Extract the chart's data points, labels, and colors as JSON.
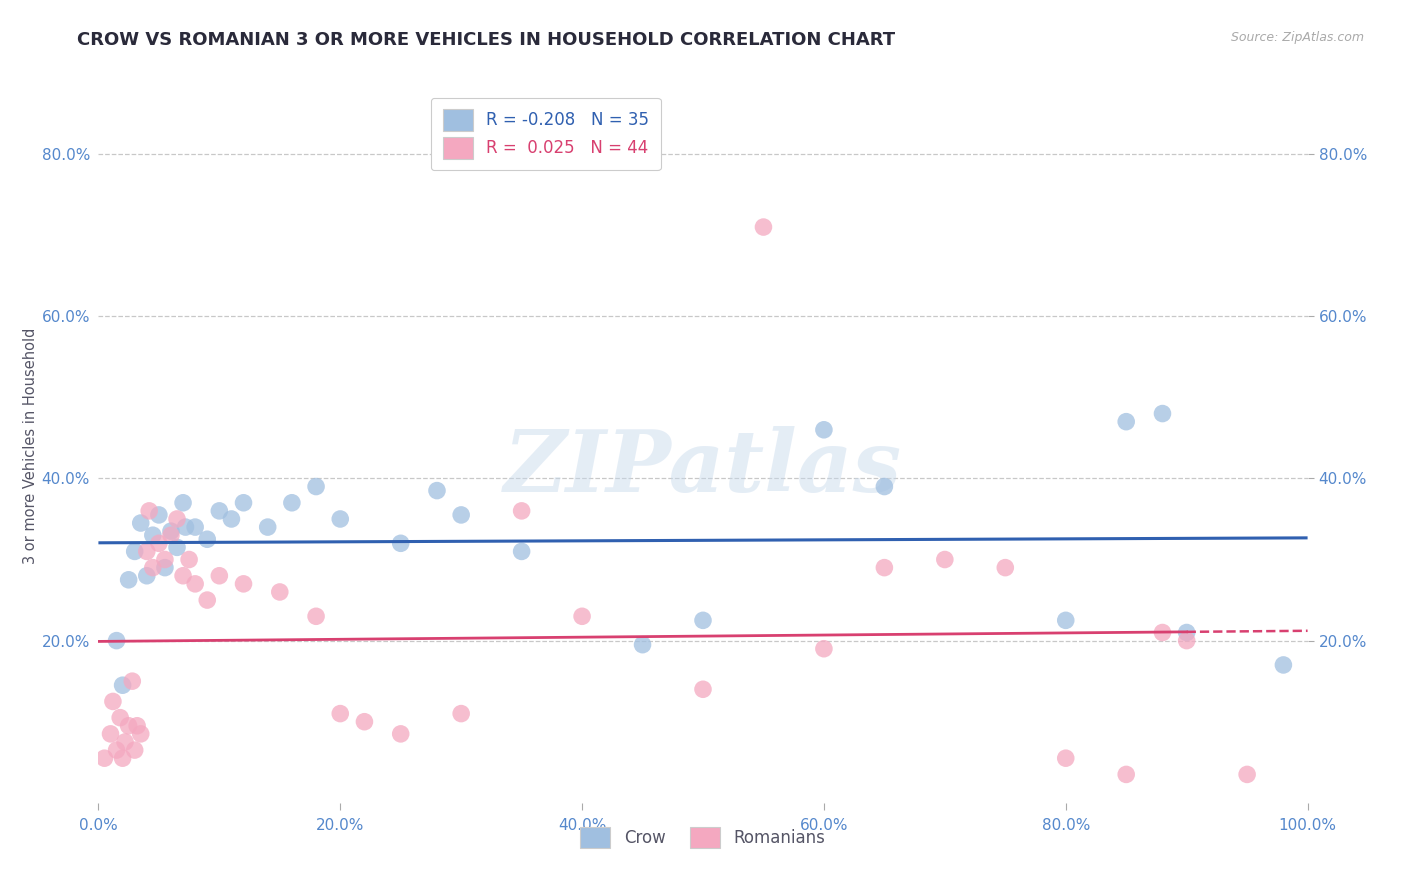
{
  "title": "CROW VS ROMANIAN 3 OR MORE VEHICLES IN HOUSEHOLD CORRELATION CHART",
  "source": "Source: ZipAtlas.com",
  "ylabel": "3 or more Vehicles in Household",
  "xlabel_vals": [
    0.0,
    20.0,
    40.0,
    60.0,
    80.0,
    100.0
  ],
  "ylabel_vals": [
    20.0,
    40.0,
    60.0,
    80.0
  ],
  "xlim": [
    0.0,
    100.0
  ],
  "ylim": [
    0.0,
    88.0
  ],
  "watermark_text": "ZIPatlas",
  "crow_scatter": [
    [
      1.5,
      20.0
    ],
    [
      2.0,
      14.5
    ],
    [
      3.0,
      31.0
    ],
    [
      4.0,
      28.0
    ],
    [
      4.5,
      33.0
    ],
    [
      5.0,
      35.5
    ],
    [
      5.5,
      29.0
    ],
    [
      6.0,
      33.5
    ],
    [
      6.5,
      31.5
    ],
    [
      7.0,
      37.0
    ],
    [
      7.2,
      34.0
    ],
    [
      8.0,
      34.0
    ],
    [
      9.0,
      32.5
    ],
    [
      10.0,
      36.0
    ],
    [
      11.0,
      35.0
    ],
    [
      12.0,
      37.0
    ],
    [
      14.0,
      34.0
    ],
    [
      16.0,
      37.0
    ],
    [
      18.0,
      39.0
    ],
    [
      20.0,
      35.0
    ],
    [
      25.0,
      32.0
    ],
    [
      28.0,
      38.5
    ],
    [
      30.0,
      35.5
    ],
    [
      35.0,
      31.0
    ],
    [
      45.0,
      19.5
    ],
    [
      50.0,
      22.5
    ],
    [
      60.0,
      46.0
    ],
    [
      65.0,
      39.0
    ],
    [
      80.0,
      22.5
    ],
    [
      85.0,
      47.0
    ],
    [
      88.0,
      48.0
    ],
    [
      90.0,
      21.0
    ],
    [
      98.0,
      17.0
    ],
    [
      2.5,
      27.5
    ],
    [
      3.5,
      34.5
    ]
  ],
  "romanian_scatter": [
    [
      0.5,
      5.5
    ],
    [
      1.0,
      8.5
    ],
    [
      1.2,
      12.5
    ],
    [
      1.5,
      6.5
    ],
    [
      1.8,
      10.5
    ],
    [
      2.0,
      5.5
    ],
    [
      2.2,
      7.5
    ],
    [
      2.5,
      9.5
    ],
    [
      2.8,
      15.0
    ],
    [
      3.0,
      6.5
    ],
    [
      3.2,
      9.5
    ],
    [
      3.5,
      8.5
    ],
    [
      4.0,
      31.0
    ],
    [
      4.2,
      36.0
    ],
    [
      4.5,
      29.0
    ],
    [
      5.0,
      32.0
    ],
    [
      5.5,
      30.0
    ],
    [
      6.0,
      33.0
    ],
    [
      6.5,
      35.0
    ],
    [
      7.0,
      28.0
    ],
    [
      7.5,
      30.0
    ],
    [
      8.0,
      27.0
    ],
    [
      9.0,
      25.0
    ],
    [
      10.0,
      28.0
    ],
    [
      12.0,
      27.0
    ],
    [
      15.0,
      26.0
    ],
    [
      18.0,
      23.0
    ],
    [
      20.0,
      11.0
    ],
    [
      22.0,
      10.0
    ],
    [
      25.0,
      8.5
    ],
    [
      30.0,
      11.0
    ],
    [
      35.0,
      36.0
    ],
    [
      40.0,
      23.0
    ],
    [
      50.0,
      14.0
    ],
    [
      55.0,
      71.0
    ],
    [
      60.0,
      19.0
    ],
    [
      65.0,
      29.0
    ],
    [
      70.0,
      30.0
    ],
    [
      75.0,
      29.0
    ],
    [
      80.0,
      5.5
    ],
    [
      85.0,
      3.5
    ],
    [
      88.0,
      21.0
    ],
    [
      90.0,
      20.0
    ],
    [
      95.0,
      3.5
    ]
  ],
  "crow_color": "#a0bfe0",
  "romanian_color": "#f4a8c0",
  "crow_line_color": "#3060b0",
  "romanian_line_color": "#d84070",
  "background_color": "#ffffff",
  "grid_color": "#bbbbbb",
  "title_color": "#2a2a3a",
  "axis_tick_color": "#5588cc",
  "ylabel_color": "#555566",
  "legend_r_crow": "-0.208",
  "legend_n_crow": "35",
  "legend_r_romanian": "0.025",
  "legend_n_romanian": "44",
  "legend_crow_label": "Crow",
  "legend_romanian_label": "Romanians"
}
